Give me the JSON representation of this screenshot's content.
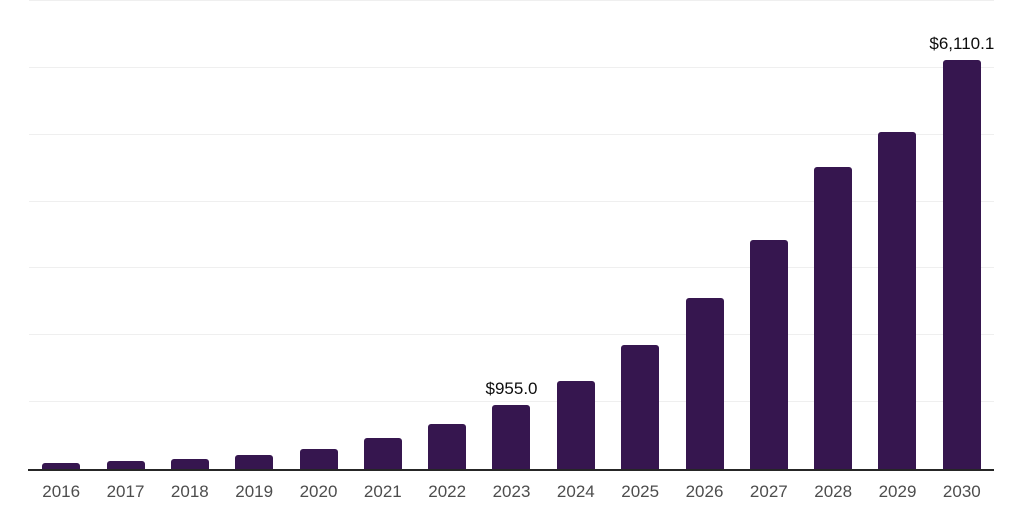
{
  "chart": {
    "bar_color": "#36164f",
    "gridline_color": "#efefef",
    "axis_line_color": "#262626",
    "tick_label_color": "#4d4d4d",
    "data_label_color": "#0d0d0d",
    "background_color": "#ffffff"
  },
  "chart_data": {
    "type": "bar",
    "title": "",
    "xlabel": "",
    "ylabel": "",
    "categories": [
      "2016",
      "2017",
      "2018",
      "2019",
      "2020",
      "2021",
      "2022",
      "2023",
      "2024",
      "2025",
      "2026",
      "2027",
      "2028",
      "2029",
      "2030"
    ],
    "values": [
      85,
      120,
      150,
      215,
      300,
      465,
      670,
      955,
      1320,
      1860,
      2555,
      3420,
      4520,
      5045,
      6110.1
    ],
    "data_labels": {
      "2023": "$955.0",
      "2030": "$6,110.1"
    },
    "ylim": [
      0,
      7000
    ],
    "gridline_step": 1000,
    "grid": true,
    "y_axis_labels_visible": false,
    "legend": false
  }
}
